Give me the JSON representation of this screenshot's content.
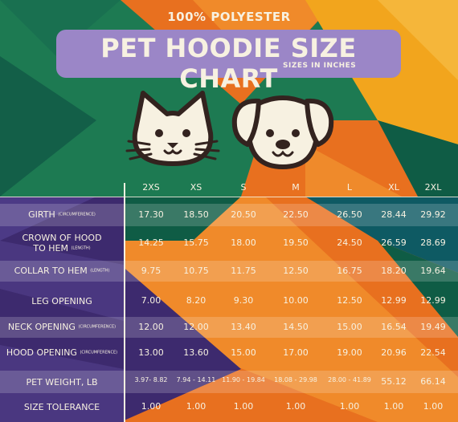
{
  "header": {
    "material": "100% POLYESTER",
    "title": "PET HOODIE SIZE CHART",
    "units": "SIZES IN INCHES"
  },
  "icons": [
    "cat-face-icon",
    "dog-face-icon"
  ],
  "colors": {
    "green": "#1d7a52",
    "dark_green": "#0f5c45",
    "teal": "#0e5a63",
    "orange": "#e8701f",
    "yellow": "#f2a51d",
    "purple": "#9b86c7",
    "deep_purple": "#3d2a6e",
    "cream": "#f7f1e1",
    "outline": "#33231f"
  },
  "table": {
    "sizes": [
      "2XS",
      "XS",
      "S",
      "M",
      "L",
      "XL",
      "2XL"
    ],
    "rows": [
      {
        "label": "GIRTH",
        "note": "(CIRCUMFERENCE)",
        "values": [
          "17.30",
          "18.50",
          "20.50",
          "22.50",
          "26.50",
          "28.44",
          "29.92"
        ]
      },
      {
        "label": "CROWN OF HOOD",
        "label2": "TO HEM",
        "note": "(LENGTH)",
        "values": [
          "14.25",
          "15.75",
          "18.00",
          "19.50",
          "24.50",
          "26.59",
          "28.69"
        ]
      },
      {
        "label": "COLLAR TO HEM",
        "note": "(LENGTH)",
        "values": [
          "9.75",
          "10.75",
          "11.75",
          "12.50",
          "16.75",
          "18.20",
          "19.64"
        ]
      },
      {
        "label": "LEG OPENING",
        "values": [
          "7.00",
          "8.20",
          "9.30",
          "10.00",
          "12.50",
          "12.99",
          "12.99"
        ]
      },
      {
        "label": "NECK OPENING",
        "note": "(CIRCUMFERENCE)",
        "values": [
          "12.00",
          "12.00",
          "13.40",
          "14.50",
          "15.00",
          "16.54",
          "19.49"
        ]
      },
      {
        "label": "HOOD OPENING",
        "note": "(CIRCUMFERENCE)",
        "values": [
          "13.00",
          "13.60",
          "15.00",
          "17.00",
          "19.00",
          "20.96",
          "22.54"
        ]
      },
      {
        "label": "PET WEIGHT, LB",
        "values": [
          "3.97- 8.82",
          "7.94 - 14.11",
          "11.90 - 19.84",
          "18.08 - 29.98",
          "28.00 - 41.89",
          "55.12",
          "66.14"
        ]
      },
      {
        "label": "SIZE TOLERANCE",
        "values": [
          "1.00",
          "1.00",
          "1.00",
          "1.00",
          "1.00",
          "1.00",
          "1.00"
        ]
      }
    ]
  }
}
